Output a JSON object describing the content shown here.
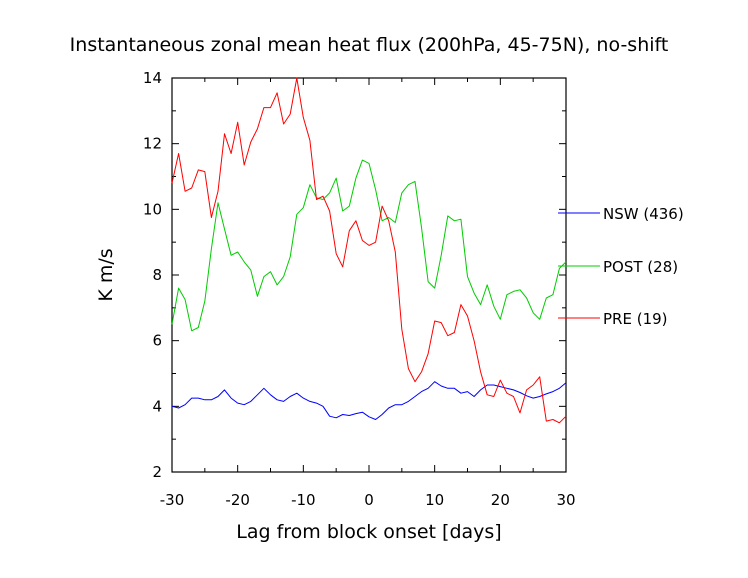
{
  "chart_data": {
    "type": "line",
    "title": "Instantaneous zonal mean heat flux (200hPa, 45-75N), no-shift",
    "xlabel": "Lag from block onset [days]",
    "ylabel": "K m/s",
    "xlim": [
      -30,
      30
    ],
    "ylim": [
      2,
      14
    ],
    "xticks": [
      -30,
      -20,
      -10,
      0,
      10,
      20,
      30
    ],
    "yticks": [
      2,
      4,
      6,
      8,
      10,
      12,
      14
    ],
    "grid": false,
    "legend_position": "right, outside plot",
    "x": [
      -30,
      -29,
      -28,
      -27,
      -26,
      -25,
      -24,
      -23,
      -22,
      -21,
      -20,
      -19,
      -18,
      -17,
      -16,
      -15,
      -14,
      -13,
      -12,
      -11,
      -10,
      -9,
      -8,
      -7,
      -6,
      -5,
      -4,
      -3,
      -2,
      -1,
      0,
      1,
      2,
      3,
      4,
      5,
      6,
      7,
      8,
      9,
      10,
      11,
      12,
      13,
      14,
      15,
      16,
      17,
      18,
      19,
      20,
      21,
      22,
      23,
      24,
      25,
      26,
      27,
      28,
      29,
      30
    ],
    "series": [
      {
        "name": "NSW (436)",
        "color": "#0000ff",
        "values": [
          4.0,
          3.95,
          4.05,
          4.25,
          4.25,
          4.2,
          4.2,
          4.3,
          4.5,
          4.25,
          4.1,
          4.05,
          4.15,
          4.35,
          4.55,
          4.35,
          4.2,
          4.15,
          4.3,
          4.4,
          4.25,
          4.15,
          4.1,
          4.0,
          3.7,
          3.65,
          3.75,
          3.72,
          3.78,
          3.82,
          3.68,
          3.6,
          3.75,
          3.95,
          4.05,
          4.05,
          4.15,
          4.3,
          4.45,
          4.55,
          4.75,
          4.62,
          4.55,
          4.55,
          4.4,
          4.45,
          4.3,
          4.5,
          4.65,
          4.65,
          4.6,
          4.55,
          4.5,
          4.42,
          4.32,
          4.25,
          4.3,
          4.38,
          4.45,
          4.55,
          4.72
        ]
      },
      {
        "name": "POST (28)",
        "color": "#00cc00",
        "values": [
          6.5,
          7.6,
          7.25,
          6.3,
          6.4,
          7.2,
          8.8,
          10.2,
          9.4,
          8.6,
          8.7,
          8.4,
          8.15,
          7.35,
          7.95,
          8.1,
          7.7,
          7.95,
          8.55,
          9.85,
          10.05,
          10.75,
          10.35,
          10.3,
          10.5,
          10.95,
          9.95,
          10.1,
          10.95,
          11.5,
          11.4,
          10.6,
          9.65,
          9.75,
          9.6,
          10.5,
          10.75,
          10.85,
          9.45,
          7.8,
          7.6,
          8.6,
          9.8,
          9.65,
          9.7,
          7.95,
          7.45,
          7.1,
          7.7,
          7.05,
          6.65,
          7.4,
          7.5,
          7.55,
          7.3,
          6.85,
          6.65,
          7.3,
          7.4,
          8.2,
          8.4
        ]
      },
      {
        "name": "PRE (19)",
        "color": "#ff0000",
        "values": [
          10.8,
          11.7,
          10.55,
          10.65,
          11.2,
          11.15,
          9.75,
          10.55,
          12.3,
          11.7,
          12.65,
          11.35,
          12.05,
          12.45,
          13.1,
          13.1,
          13.55,
          12.6,
          12.9,
          14.0,
          12.8,
          12.1,
          10.3,
          10.4,
          9.95,
          8.65,
          8.25,
          9.35,
          9.65,
          9.05,
          8.9,
          9.0,
          10.1,
          9.65,
          8.7,
          6.35,
          5.15,
          4.75,
          5.05,
          5.6,
          6.6,
          6.55,
          6.15,
          6.25,
          7.1,
          6.75,
          6.0,
          5.05,
          4.35,
          4.3,
          4.8,
          4.4,
          4.3,
          3.8,
          4.5,
          4.65,
          4.9,
          3.55,
          3.6,
          3.5,
          3.7
        ]
      }
    ]
  }
}
